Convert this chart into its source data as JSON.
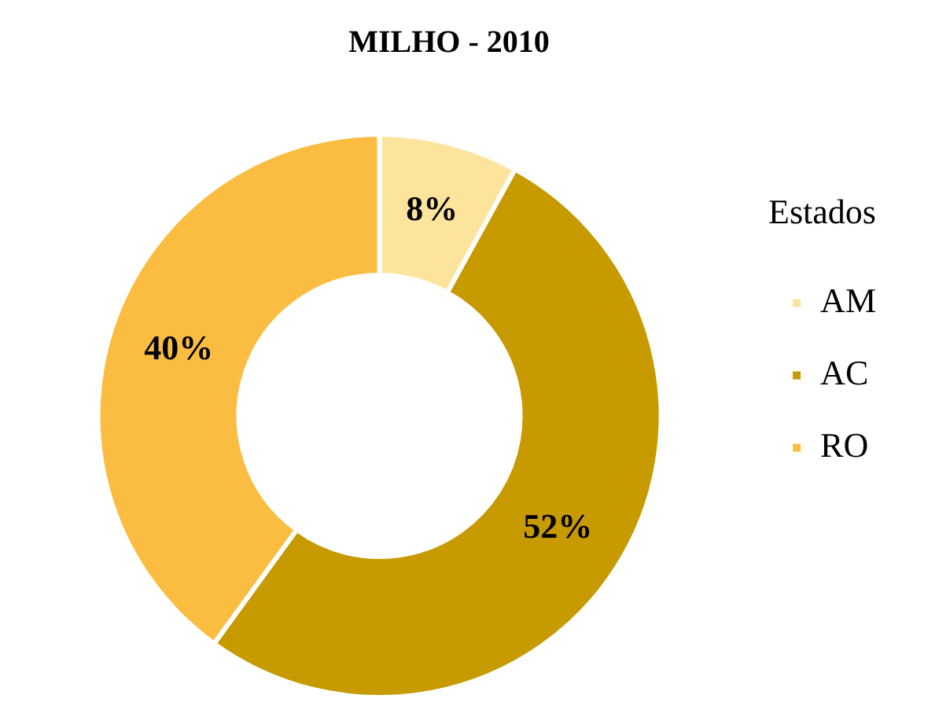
{
  "chart_data": {
    "type": "donut",
    "title": "MILHO - 2010",
    "legend_title": "Estados",
    "legend": "right",
    "value_labels": [
      "8%",
      "52%",
      "40%"
    ],
    "categories": [
      "AM",
      "AC",
      "RO"
    ],
    "values": [
      8,
      52,
      40
    ],
    "colors": [
      "#fde49c",
      "#c79a00",
      "#fbbd41"
    ]
  }
}
